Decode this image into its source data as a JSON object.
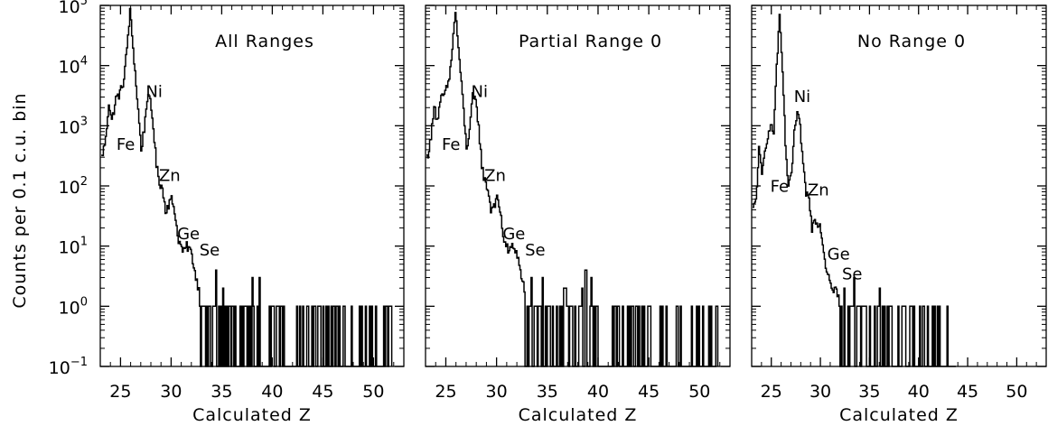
{
  "figure": {
    "ylabel": "Counts per 0.1 c.u. bin",
    "colors": {
      "line": "#000000",
      "background": "#ffffff"
    }
  },
  "chart_data": [
    {
      "type": "line",
      "title": "All Ranges",
      "xlabel": "Calculated Z",
      "ylabel": "Counts per 0.1 c.u. bin",
      "xlim": [
        23,
        53
      ],
      "ylim": [
        0.1,
        100000
      ],
      "yscale": "log",
      "xticks": [
        25,
        30,
        35,
        40,
        45,
        50
      ],
      "yticks": [
        {
          "value": 0.1,
          "base": "10",
          "exp": "−1"
        },
        {
          "value": 1,
          "base": "10",
          "exp": "0"
        },
        {
          "value": 10,
          "base": "10",
          "exp": "1"
        },
        {
          "value": 100,
          "base": "10",
          "exp": "2"
        },
        {
          "value": 1000,
          "base": "10",
          "exp": "3"
        },
        {
          "value": 10000,
          "base": "10",
          "exp": "4"
        },
        {
          "value": 100000,
          "base": "10",
          "exp": "5"
        }
      ],
      "annotations": [
        {
          "text": "Fe",
          "x": 24.6,
          "y": 400
        },
        {
          "text": "Ni",
          "x": 27.5,
          "y": 3000
        },
        {
          "text": "Zn",
          "x": 28.8,
          "y": 120
        },
        {
          "text": "Ge",
          "x": 30.6,
          "y": 13
        },
        {
          "text": "Se",
          "x": 32.8,
          "y": 7
        }
      ],
      "series": [
        {
          "profile": [
            [
              23.1,
              300
            ],
            [
              23.5,
              600
            ],
            [
              23.8,
              2500
            ],
            [
              24.1,
              1200
            ],
            [
              24.5,
              2800
            ],
            [
              24.9,
              3500
            ],
            [
              25.3,
              6000
            ],
            [
              25.6,
              20000
            ],
            [
              25.9,
              80000
            ],
            [
              26.2,
              20000
            ],
            [
              26.6,
              3000
            ],
            [
              27,
              400
            ],
            [
              27.3,
              900
            ],
            [
              27.6,
              3000
            ],
            [
              27.9,
              2500
            ],
            [
              28.2,
              1000
            ],
            [
              28.5,
              220
            ],
            [
              28.8,
              120
            ],
            [
              29.1,
              90
            ],
            [
              29.4,
              40
            ],
            [
              29.7,
              50
            ],
            [
              30,
              60
            ],
            [
              30.3,
              40
            ],
            [
              30.6,
              15
            ],
            [
              30.9,
              10
            ],
            [
              31.2,
              8
            ],
            [
              31.5,
              10
            ],
            [
              31.8,
              9
            ],
            [
              32.1,
              6
            ],
            [
              32.4,
              3
            ],
            [
              32.7,
              2
            ]
          ],
          "spikes_from": 32.8,
          "spikes_to": 51.8
        }
      ]
    },
    {
      "type": "line",
      "title": "Partial Range 0",
      "xlabel": "Calculated Z",
      "xlim": [
        23,
        53
      ],
      "ylim": [
        0.1,
        100000
      ],
      "yscale": "log",
      "xticks": [
        25,
        30,
        35,
        40,
        45,
        50
      ],
      "annotations": [
        {
          "text": "Fe",
          "x": 24.6,
          "y": 400
        },
        {
          "text": "Ni",
          "x": 27.5,
          "y": 3000
        },
        {
          "text": "Zn",
          "x": 28.8,
          "y": 120
        },
        {
          "text": "Ge",
          "x": 30.6,
          "y": 13
        },
        {
          "text": "Se",
          "x": 32.8,
          "y": 7
        }
      ],
      "series": [
        {
          "profile": [
            [
              23.1,
              300
            ],
            [
              23.5,
              600
            ],
            [
              23.8,
              2500
            ],
            [
              24.1,
              1200
            ],
            [
              24.5,
              2800
            ],
            [
              24.9,
              3500
            ],
            [
              25.3,
              6000
            ],
            [
              25.6,
              20000
            ],
            [
              25.9,
              80000
            ],
            [
              26.2,
              20000
            ],
            [
              26.6,
              3000
            ],
            [
              27,
              400
            ],
            [
              27.3,
              900
            ],
            [
              27.6,
              3000
            ],
            [
              27.9,
              2500
            ],
            [
              28.2,
              1000
            ],
            [
              28.5,
              220
            ],
            [
              28.8,
              120
            ],
            [
              29.1,
              90
            ],
            [
              29.4,
              40
            ],
            [
              29.7,
              50
            ],
            [
              30,
              60
            ],
            [
              30.3,
              40
            ],
            [
              30.6,
              15
            ],
            [
              30.9,
              10
            ],
            [
              31.2,
              8
            ],
            [
              31.5,
              10
            ],
            [
              31.8,
              9
            ],
            [
              32.1,
              6
            ],
            [
              32.4,
              3
            ],
            [
              32.7,
              2
            ]
          ],
          "spikes_from": 32.8,
          "spikes_to": 51.8
        }
      ]
    },
    {
      "type": "line",
      "title": "No Range 0",
      "xlabel": "Calculated Z",
      "xlim": [
        23,
        53
      ],
      "ylim": [
        0.1,
        100000
      ],
      "yscale": "log",
      "xticks": [
        25,
        30,
        35,
        40,
        45,
        50
      ],
      "annotations": [
        {
          "text": "Fe",
          "x": 24.9,
          "y": 80
        },
        {
          "text": "Ni",
          "x": 27.3,
          "y": 2500
        },
        {
          "text": "Zn",
          "x": 28.7,
          "y": 70
        },
        {
          "text": "Ge",
          "x": 30.7,
          "y": 6
        },
        {
          "text": "Se",
          "x": 32.2,
          "y": 2.8
        }
      ],
      "series": [
        {
          "profile": [
            [
              23.1,
              40
            ],
            [
              23.4,
              60
            ],
            [
              23.7,
              400
            ],
            [
              24,
              150
            ],
            [
              24.4,
              500
            ],
            [
              24.8,
              1000
            ],
            [
              25.2,
              800
            ],
            [
              25.5,
              10000
            ],
            [
              25.8,
              60000
            ],
            [
              26.1,
              8000
            ],
            [
              26.4,
              500
            ],
            [
              26.7,
              90
            ],
            [
              27,
              150
            ],
            [
              27.3,
              800
            ],
            [
              27.6,
              1500
            ],
            [
              27.9,
              1000
            ],
            [
              28.2,
              200
            ],
            [
              28.5,
              80
            ],
            [
              28.8,
              60
            ],
            [
              29.1,
              20
            ],
            [
              29.4,
              30
            ],
            [
              29.7,
              25
            ],
            [
              30,
              20
            ],
            [
              30.3,
              8
            ],
            [
              30.6,
              4
            ],
            [
              30.9,
              3
            ],
            [
              31.2,
              2
            ],
            [
              31.5,
              2
            ],
            [
              31.8,
              1.5
            ]
          ],
          "spikes_from": 31.9,
          "spikes_to": 43.8
        }
      ]
    }
  ]
}
